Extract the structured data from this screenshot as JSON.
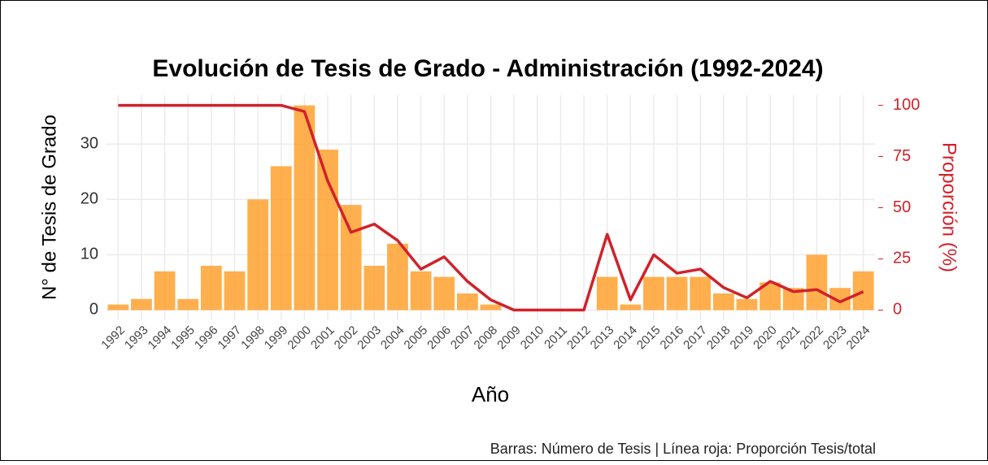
{
  "chart_data": {
    "type": "combo",
    "title": "Evolución de Tesis de Grado - Administración (1992-2024)",
    "xlabel": "Año",
    "ylabel": "N° de Tesis de Grado",
    "y2label": "Proporción (%)",
    "caption": "Barras: Número de Tesis | Línea roja: Proporción Tesis/total",
    "categories": [
      "1992",
      "1993",
      "1994",
      "1995",
      "1996",
      "1997",
      "1998",
      "1999",
      "2000",
      "2001",
      "2002",
      "2003",
      "2004",
      "2005",
      "2006",
      "2007",
      "2008",
      "2009",
      "2010",
      "2011",
      "2012",
      "2013",
      "2014",
      "2015",
      "2016",
      "2017",
      "2018",
      "2019",
      "2020",
      "2021",
      "2022",
      "2023",
      "2024"
    ],
    "series": [
      {
        "type": "bar",
        "color": "#ffa12e",
        "values": [
          1,
          2,
          7,
          2,
          8,
          7,
          20,
          26,
          37,
          29,
          19,
          8,
          12,
          7,
          6,
          3,
          1,
          0,
          0,
          0,
          0,
          6,
          1,
          6,
          6,
          6,
          3,
          2,
          5,
          4,
          10,
          4,
          7
        ]
      },
      {
        "type": "line",
        "axis": "y2",
        "color": "#d0222b",
        "values": [
          100,
          100,
          100,
          100,
          100,
          100,
          100,
          100,
          97,
          63,
          38,
          42,
          34,
          20,
          26,
          14,
          5,
          0,
          0,
          0,
          0,
          37,
          5,
          27,
          18,
          20,
          11,
          6,
          14,
          9,
          10,
          4,
          9
        ]
      }
    ],
    "ylim": [
      -1.85,
      38.85
    ],
    "yticks": [
      0,
      10,
      20,
      30
    ],
    "y2lim": [
      -5,
      105
    ],
    "y2ticks": [
      0,
      25,
      50,
      75,
      100
    ],
    "y2color": "#d0222b",
    "grid": true
  }
}
